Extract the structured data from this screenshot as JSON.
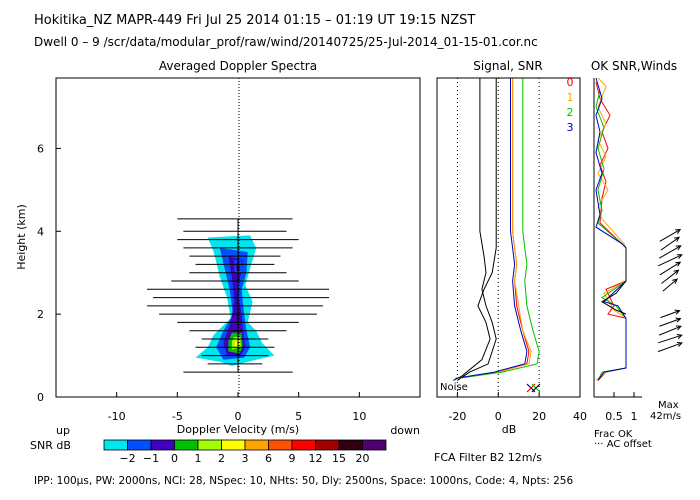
{
  "header": {
    "line1": "Hokitika_NZ   MAPR-449   Fri Jul 25 2014 01:15 – 01:19 UT 19:15 NZST",
    "line2": "Dwell   0 –  9    /scr/data/modular_prof/raw/wind/20140725/25-Jul-2014_01-15-01.cor.nc"
  },
  "footer": {
    "params": "IPP: 100μs,  PW: 2000ns,  NCI:  28,  NSpec: 10, NHts: 50,  Dly: 2500ns,  Space: 1000ns,  Code: 4,  Npts: 256",
    "filter": "FCA Filter B2 12m/s"
  },
  "colors": {
    "snr_palette": [
      "#00e5ee",
      "#0050ff",
      "#4000c0",
      "#00c000",
      "#a0ff00",
      "#ffff00",
      "#ffa500",
      "#ff5000",
      "#ff0000",
      "#a00000",
      "#300010",
      "#500070"
    ],
    "beam0": "#ff0000",
    "beam1": "#ffa500",
    "beam2": "#00c000",
    "beam3": "#0000c0"
  },
  "chart_data": [
    {
      "type": "heatmap",
      "title": "Averaged Doppler Spectra",
      "xlabel": "Doppler Velocity (m/s)",
      "ylabel": "Height (km)",
      "xlim": [
        -15,
        15
      ],
      "ylim": [
        0,
        7.7
      ],
      "xticks": [
        -10,
        -5,
        0,
        5,
        10
      ],
      "yticks": [
        0,
        2,
        4,
        6
      ],
      "left_end_label": "up",
      "right_end_label": "down",
      "colorbar": {
        "label": "SNR dB",
        "ticks": [
          "−2",
          "−1",
          "0",
          "1",
          "2",
          "3",
          "6",
          "9",
          "12",
          "15",
          "20"
        ]
      },
      "spectral_width_bars": [
        {
          "h": 4.3,
          "x1": -5,
          "x2": 4.5
        },
        {
          "h": 4.0,
          "x1": -4.5,
          "x2": 4.0
        },
        {
          "h": 3.8,
          "x1": -5.0,
          "x2": 5.0
        },
        {
          "h": 3.6,
          "x1": -4.5,
          "x2": 4.5
        },
        {
          "h": 3.4,
          "x1": -4.0,
          "x2": 3.5
        },
        {
          "h": 3.2,
          "x1": -3.5,
          "x2": 3.0
        },
        {
          "h": 3.0,
          "x1": -4.0,
          "x2": 4.0
        },
        {
          "h": 2.8,
          "x1": -5.5,
          "x2": 5.0
        },
        {
          "h": 2.6,
          "x1": -7.5,
          "x2": 7.5
        },
        {
          "h": 2.4,
          "x1": -7.0,
          "x2": 7.5
        },
        {
          "h": 2.2,
          "x1": -7.5,
          "x2": 7.0
        },
        {
          "h": 2.0,
          "x1": -6.5,
          "x2": 6.5
        },
        {
          "h": 1.8,
          "x1": -5.0,
          "x2": 5.0
        },
        {
          "h": 1.6,
          "x1": -4.0,
          "x2": 4.0
        },
        {
          "h": 1.4,
          "x1": -3.0,
          "x2": 2.5
        },
        {
          "h": 1.2,
          "x1": -3.5,
          "x2": 3.0
        },
        {
          "h": 1.0,
          "x1": -3.0,
          "x2": 2.5
        },
        {
          "h": 0.8,
          "x1": -2.5,
          "x2": 2.0
        },
        {
          "h": 0.6,
          "x1": -4.5,
          "x2": 4.5
        }
      ]
    },
    {
      "type": "line",
      "title": "Signal, SNR",
      "xlabel": "dB",
      "xlim": [
        -30,
        40
      ],
      "ylim": [
        0,
        7.7
      ],
      "xticks": [
        -20,
        0,
        20,
        40
      ],
      "annotation": "Noise",
      "series": [
        {
          "color": "#000000",
          "points": [
            [
              -9,
              7.7
            ],
            [
              -9,
              4.0
            ],
            [
              -7,
              3.4
            ],
            [
              -6,
              3.0
            ],
            [
              -8,
              2.6
            ],
            [
              -6,
              2.2
            ],
            [
              -3,
              1.8
            ],
            [
              -1,
              1.4
            ],
            [
              -5,
              0.8
            ],
            [
              -14,
              0.6
            ],
            [
              -20,
              0.4
            ]
          ]
        },
        {
          "color": "#000000",
          "points": [
            [
              -1,
              7.7
            ],
            [
              -1,
              4.0
            ],
            [
              -1,
              3.6
            ],
            [
              -3,
              3.0
            ],
            [
              -7,
              2.6
            ],
            [
              -10,
              2.2
            ],
            [
              -6,
              1.8
            ],
            [
              -4,
              1.4
            ],
            [
              -8,
              0.9
            ],
            [
              -18,
              0.5
            ],
            [
              -22,
              0.4
            ]
          ]
        },
        {
          "color": "#ff0000",
          "points": [
            [
              7,
              7.7
            ],
            [
              7,
              4.0
            ],
            [
              8,
              3.6
            ],
            [
              9,
              3.2
            ],
            [
              8,
              2.8
            ],
            [
              9,
              2.2
            ],
            [
              12,
              1.6
            ],
            [
              15,
              1.1
            ],
            [
              14,
              0.8
            ],
            [
              0,
              0.6
            ],
            [
              -20,
              0.45
            ]
          ]
        },
        {
          "color": "#ffa500",
          "points": [
            [
              7,
              7.7
            ],
            [
              7,
              4.0
            ],
            [
              8,
              3.6
            ],
            [
              9,
              3.2
            ],
            [
              8,
              2.8
            ],
            [
              10,
              2.2
            ],
            [
              12,
              1.6
            ],
            [
              16,
              1.1
            ],
            [
              15,
              0.8
            ],
            [
              0,
              0.6
            ],
            [
              -20,
              0.45
            ]
          ]
        },
        {
          "color": "#00c000",
          "points": [
            [
              12,
              7.7
            ],
            [
              12,
              4.0
            ],
            [
              13,
              3.6
            ],
            [
              14,
              3.2
            ],
            [
              13,
              2.8
            ],
            [
              14,
              2.2
            ],
            [
              17,
              1.6
            ],
            [
              20,
              1.1
            ],
            [
              19,
              0.8
            ],
            [
              2,
              0.6
            ],
            [
              -20,
              0.45
            ]
          ]
        },
        {
          "color": "#0000c0",
          "points": [
            [
              6,
              7.7
            ],
            [
              6,
              4.0
            ],
            [
              7,
              3.6
            ],
            [
              8,
              3.2
            ],
            [
              7,
              2.8
            ],
            [
              8,
              2.2
            ],
            [
              11,
              1.6
            ],
            [
              14,
              1.1
            ],
            [
              13,
              0.8
            ],
            [
              -2,
              0.6
            ],
            [
              -21,
              0.45
            ]
          ]
        }
      ]
    },
    {
      "type": "line",
      "title": "OK SNR,Winds",
      "legend": [
        "0",
        "1",
        "2",
        "3"
      ],
      "xlim": [
        0,
        1.2
      ],
      "ylim": [
        0,
        7.7
      ],
      "xticks": [
        0.5,
        1
      ],
      "xlabel": "Frac OK",
      "note": "··· AC offset",
      "max_label": "Max",
      "max_value": "42m/s",
      "series": [
        {
          "color": "#ff0000",
          "points": [
            [
              0.05,
              7.6
            ],
            [
              0.15,
              7.2
            ],
            [
              0.4,
              6.8
            ],
            [
              0.2,
              6.4
            ],
            [
              0.35,
              6.0
            ],
            [
              0.15,
              5.6
            ],
            [
              0.3,
              5.2
            ],
            [
              0.2,
              4.8
            ],
            [
              0.15,
              4.2
            ],
            [
              0.7,
              3.7
            ],
            [
              0.8,
              3.6
            ],
            [
              0.8,
              2.8
            ],
            [
              0.3,
              2.6
            ],
            [
              0.5,
              2.2
            ],
            [
              0.35,
              2.0
            ],
            [
              0.8,
              1.9
            ],
            [
              0.8,
              0.7
            ],
            [
              0.3,
              0.6
            ],
            [
              0.1,
              0.4
            ]
          ]
        },
        {
          "color": "#ffa500",
          "points": [
            [
              0.1,
              7.7
            ],
            [
              0.3,
              7.5
            ],
            [
              0.1,
              7.0
            ],
            [
              0.3,
              6.6
            ],
            [
              0.1,
              6.2
            ],
            [
              0.3,
              5.8
            ],
            [
              0.1,
              5.4
            ],
            [
              0.35,
              5.0
            ],
            [
              0.1,
              4.6
            ],
            [
              0.2,
              4.3
            ],
            [
              0.75,
              3.7
            ],
            [
              0.8,
              3.6
            ],
            [
              0.8,
              2.8
            ],
            [
              0.25,
              2.5
            ],
            [
              0.5,
              2.1
            ],
            [
              0.8,
              1.9
            ],
            [
              0.8,
              0.7
            ],
            [
              0.3,
              0.6
            ],
            [
              0.05,
              0.4
            ]
          ]
        },
        {
          "color": "#00c000",
          "points": [
            [
              0.15,
              7.4
            ],
            [
              0.05,
              7.0
            ],
            [
              0.25,
              6.5
            ],
            [
              0.1,
              6.0
            ],
            [
              0.25,
              5.5
            ],
            [
              0.1,
              5.0
            ],
            [
              0.2,
              4.5
            ],
            [
              0.1,
              4.2
            ],
            [
              0.7,
              3.7
            ],
            [
              0.8,
              3.6
            ],
            [
              0.8,
              2.8
            ],
            [
              0.2,
              2.4
            ],
            [
              0.55,
              2.2
            ],
            [
              0.8,
              1.9
            ],
            [
              0.8,
              0.7
            ],
            [
              0.2,
              0.6
            ],
            [
              0.1,
              0.4
            ]
          ]
        },
        {
          "color": "#0000c0",
          "points": [
            [
              0.05,
              7.7
            ],
            [
              0.2,
              7.2
            ],
            [
              0.05,
              6.8
            ],
            [
              0.15,
              6.4
            ],
            [
              0.05,
              5.9
            ],
            [
              0.2,
              5.4
            ],
            [
              0.05,
              5.0
            ],
            [
              0.15,
              4.4
            ],
            [
              0.05,
              4.1
            ],
            [
              0.7,
              3.7
            ],
            [
              0.8,
              3.6
            ],
            [
              0.8,
              2.8
            ],
            [
              0.25,
              2.3
            ],
            [
              0.6,
              2.2
            ],
            [
              0.8,
              1.9
            ],
            [
              0.8,
              0.7
            ],
            [
              0.25,
              0.6
            ],
            [
              0.1,
              0.4
            ]
          ]
        },
        {
          "color": "#000000",
          "points": [
            [
              0.8,
              3.6
            ],
            [
              0.8,
              2.8
            ],
            [
              0.55,
              2.5
            ],
            [
              0.2,
              2.3
            ],
            [
              0.55,
              2.1
            ],
            [
              0.8,
              2.0
            ]
          ]
        }
      ],
      "wind_barbs": [
        {
          "h": 3.9,
          "speed": 38,
          "dir": 240
        },
        {
          "h": 3.7,
          "speed": 36,
          "dir": 235
        },
        {
          "h": 3.5,
          "speed": 40,
          "dir": 240
        },
        {
          "h": 3.3,
          "speed": 42,
          "dir": 245
        },
        {
          "h": 3.1,
          "speed": 39,
          "dir": 238
        },
        {
          "h": 2.9,
          "speed": 35,
          "dir": 232
        },
        {
          "h": 2.7,
          "speed": 30,
          "dir": 230
        },
        {
          "h": 2.0,
          "speed": 33,
          "dir": 250
        },
        {
          "h": 1.8,
          "speed": 36,
          "dir": 250
        },
        {
          "h": 1.6,
          "speed": 38,
          "dir": 248
        },
        {
          "h": 1.4,
          "speed": 40,
          "dir": 252
        },
        {
          "h": 1.2,
          "speed": 41,
          "dir": 250
        }
      ]
    }
  ]
}
